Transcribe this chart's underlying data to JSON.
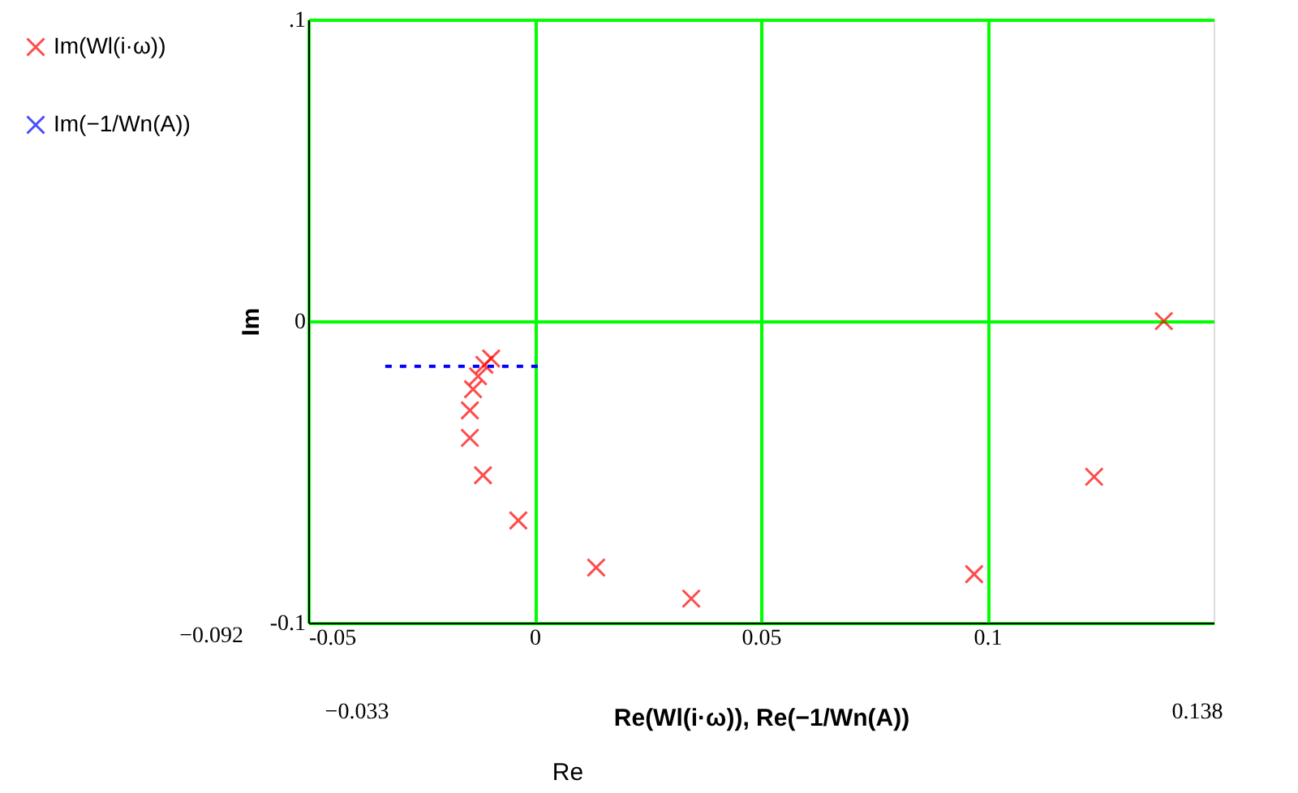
{
  "chart_data": {
    "type": "scatter",
    "xlabel": "Re(Wl(i·ω)), Re(−1/Wn(A))",
    "ylabel": "Im",
    "xlim": [
      -0.05,
      0.15
    ],
    "xticks": [
      -0.05,
      0,
      0.05,
      0.1
    ],
    "ylim": [
      -0.1,
      0.1
    ],
    "yticks": [
      {
        "value": 0.1,
        "label": ".1"
      },
      0,
      -0.1
    ],
    "grid": true,
    "legend": "left",
    "annotations": [
      "−0.092",
      "−0.033",
      "0.138",
      "Re"
    ],
    "series": [
      {
        "name": "Im(Wl(i·ω))",
        "marker": "cross",
        "color": "#ff0000",
        "x": [
          0.139,
          0.1236,
          0.0971,
          0.0346,
          0.0136,
          -0.0036,
          -0.0114,
          -0.0143,
          -0.0143,
          -0.0136,
          -0.0125,
          -0.0111,
          -0.0096
        ],
        "values": [
          0,
          -0.0516,
          -0.0839,
          -0.092,
          -0.0817,
          -0.0661,
          -0.0511,
          -0.0387,
          -0.0296,
          -0.0226,
          -0.0183,
          -0.0145,
          -0.0124
        ]
      },
      {
        "name": "Im(−1/Wn(A))",
        "type": "line",
        "line_style": "dotted",
        "color": "#0000ff",
        "x": [
          -0.033,
          0.001
        ],
        "values": [
          -0.015,
          -0.015
        ]
      }
    ]
  }
}
